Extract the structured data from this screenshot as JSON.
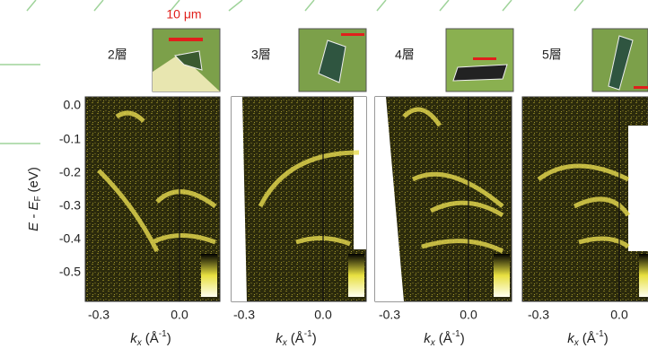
{
  "scale_label": "10 μm",
  "panels": [
    {
      "label": "2層",
      "xticks": [
        "-0.3",
        "0.0"
      ]
    },
    {
      "label": "3層",
      "xticks": [
        "-0.3",
        "0.0"
      ]
    },
    {
      "label": "4層",
      "xticks": [
        "-0.3",
        "0.0"
      ]
    },
    {
      "label": "5層",
      "xticks": [
        "-0.3",
        "0.0"
      ]
    }
  ],
  "yticks": [
    "0.0",
    "-0.1",
    "-0.2",
    "-0.3",
    "-0.4",
    "-0.5"
  ],
  "y_axis_label": {
    "pre": "E - E",
    "sub": "F",
    "unit": "(eV)"
  },
  "x_axis_label": {
    "pre": "k",
    "sub": "x",
    "unit": "(Å",
    "sup": "-1",
    "end": ")"
  }
}
